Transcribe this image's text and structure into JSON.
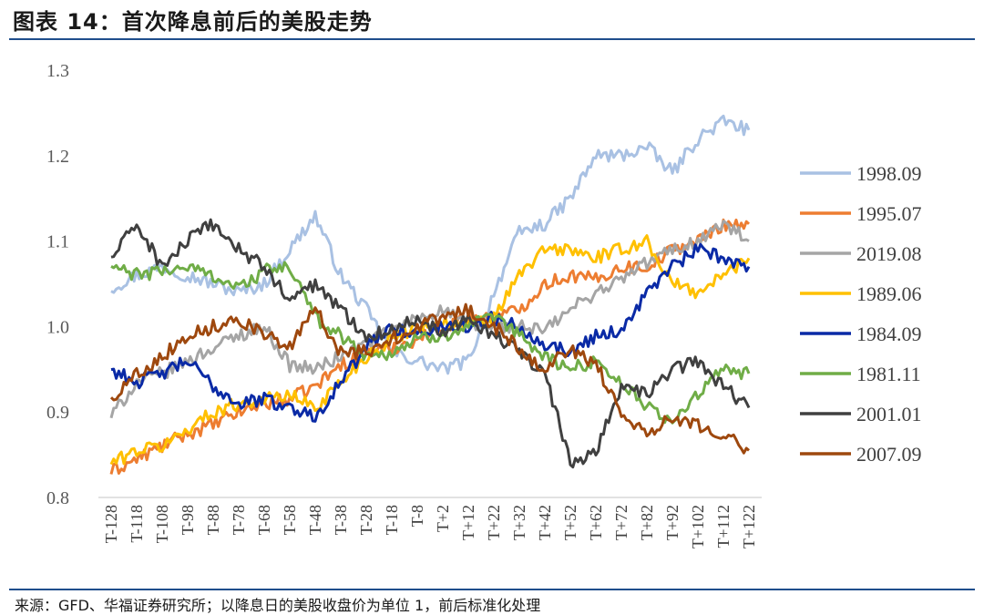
{
  "header": {
    "title": "图表 14：首次降息前后的美股走势"
  },
  "footer": {
    "source": "来源：GFD、华福证券研究所；以降息日的美股收盘价为单位 1，前后标准化处理"
  },
  "chart_data": {
    "type": "line",
    "title": "",
    "xlabel": "",
    "ylabel": "",
    "ylim": [
      0.8,
      1.3
    ],
    "yticks": [
      "1.3",
      "1.2",
      "1.1",
      "1.0",
      "0.9",
      "0.8"
    ],
    "x": [
      "T-128",
      "T-118",
      "T-108",
      "T-98",
      "T-88",
      "T-78",
      "T-68",
      "T-58",
      "T-48",
      "T-38",
      "T-28",
      "T-18",
      "T-8",
      "T+2",
      "T+12",
      "T+22",
      "T+32",
      "T+42",
      "T+52",
      "T+62",
      "T+72",
      "T+82",
      "T+92",
      "T+102",
      "T+112",
      "T+122"
    ],
    "legend": {
      "position": "right"
    },
    "series": [
      {
        "name": "1998.09",
        "color": "#a9c1e3",
        "values": [
          1.045,
          1.06,
          1.07,
          1.06,
          1.05,
          1.04,
          1.05,
          1.09,
          1.13,
          1.06,
          1.02,
          0.97,
          0.96,
          0.95,
          0.96,
          1.04,
          1.11,
          1.12,
          1.15,
          1.2,
          1.2,
          1.21,
          1.18,
          1.22,
          1.24,
          1.23
        ]
      },
      {
        "name": "1995.07",
        "color": "#ed7d31",
        "values": [
          0.83,
          0.845,
          0.86,
          0.875,
          0.885,
          0.9,
          0.91,
          0.915,
          0.93,
          0.955,
          0.97,
          0.975,
          0.985,
          1.0,
          1.01,
          1.01,
          1.02,
          1.05,
          1.06,
          1.055,
          1.07,
          1.07,
          1.09,
          1.1,
          1.12,
          1.12
        ]
      },
      {
        "name": "2019.08",
        "color": "#a5a5a5",
        "values": [
          0.895,
          0.935,
          0.945,
          0.96,
          0.975,
          0.99,
          1.0,
          0.955,
          0.95,
          0.965,
          0.98,
          0.995,
          1.01,
          1.02,
          1.0,
          1.0,
          1.0,
          0.995,
          1.02,
          1.04,
          1.055,
          1.075,
          1.09,
          1.1,
          1.12,
          1.1
        ]
      },
      {
        "name": "1989.06",
        "color": "#ffc000",
        "values": [
          0.84,
          0.855,
          0.86,
          0.88,
          0.9,
          0.91,
          0.915,
          0.92,
          0.905,
          0.935,
          0.965,
          0.985,
          1.0,
          1.005,
          1.0,
          1.01,
          1.06,
          1.09,
          1.09,
          1.08,
          1.09,
          1.1,
          1.05,
          1.04,
          1.06,
          1.08
        ]
      },
      {
        "name": "1984.09",
        "color": "#0a2aa6",
        "values": [
          0.95,
          0.935,
          0.945,
          0.96,
          0.93,
          0.91,
          0.915,
          0.905,
          0.895,
          0.935,
          0.975,
          1.0,
          0.99,
          1.0,
          1.0,
          1.01,
          1.0,
          0.98,
          0.97,
          0.99,
          0.995,
          1.04,
          1.07,
          1.09,
          1.08,
          1.07
        ]
      },
      {
        "name": "1981.11",
        "color": "#70ad47",
        "values": [
          1.07,
          1.06,
          1.065,
          1.07,
          1.06,
          1.045,
          1.065,
          1.07,
          1.01,
          0.99,
          0.965,
          0.97,
          0.985,
          0.99,
          1.0,
          1.01,
          0.99,
          0.965,
          0.95,
          0.96,
          0.935,
          0.905,
          0.89,
          0.92,
          0.95,
          0.945
        ]
      },
      {
        "name": "2001.01",
        "color": "#404040",
        "values": [
          1.08,
          1.12,
          1.07,
          1.1,
          1.12,
          1.09,
          1.07,
          1.03,
          1.05,
          1.02,
          0.99,
          0.995,
          1.01,
          0.995,
          1.01,
          0.99,
          0.97,
          0.945,
          0.84,
          0.855,
          0.93,
          0.92,
          0.95,
          0.96,
          0.93,
          0.905
        ]
      },
      {
        "name": "2007.09",
        "color": "#9e480e",
        "values": [
          0.915,
          0.945,
          0.965,
          0.99,
          1.0,
          1.01,
          0.99,
          0.975,
          1.02,
          0.97,
          0.97,
          0.985,
          1.0,
          1.01,
          1.02,
          1.0,
          0.975,
          0.95,
          0.975,
          0.955,
          0.9,
          0.875,
          0.895,
          0.885,
          0.875,
          0.855
        ]
      }
    ]
  }
}
